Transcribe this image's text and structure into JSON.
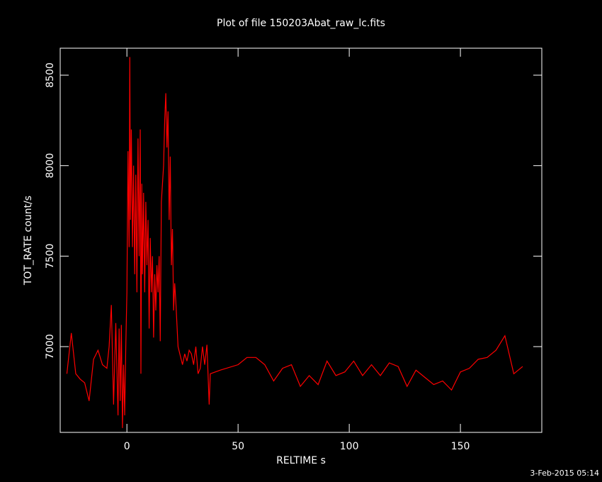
{
  "chart_data": {
    "type": "line",
    "title": "Plot of file 150203Abat_raw_lc.fits",
    "x_label": "RELTIME  s",
    "y_label": "TOT_RATE  count/s",
    "annotation": "3-Feb-2015 05:14",
    "xlim": [
      -30,
      186.6
    ],
    "ylim": [
      6526,
      8649
    ],
    "xticks": [
      0,
      50,
      100,
      150
    ],
    "yticks": [
      7000,
      7500,
      8000,
      8500
    ],
    "series": [
      {
        "color": "#ff0000",
        "x": [
          -27,
          -25,
          -23,
          -21,
          -19,
          -17,
          -15,
          -13,
          -11,
          -9,
          -8,
          -7,
          -6,
          -5,
          -4,
          -3.5,
          -3,
          -2.5,
          -2,
          -1.5,
          -1,
          -0.5,
          0,
          0.5,
          1,
          1.3,
          1.6,
          2,
          2.5,
          3,
          3.5,
          4,
          4.5,
          5,
          5.5,
          6,
          6.3,
          6.7,
          7,
          7.5,
          8,
          8.5,
          9,
          9.5,
          10,
          10.5,
          11,
          11.5,
          12,
          12.5,
          13,
          13.5,
          14,
          14.5,
          15,
          15.5,
          16,
          16.5,
          17,
          17.5,
          18,
          18.5,
          19,
          19.5,
          20,
          20.5,
          21,
          21.5,
          22,
          23,
          24,
          25,
          26,
          27,
          28,
          29,
          30,
          31,
          32,
          33,
          34,
          35,
          36,
          37,
          37.5,
          42,
          50,
          54,
          58,
          62,
          66,
          70,
          74,
          78,
          82,
          86,
          90,
          94,
          98,
          102,
          106,
          110,
          114,
          118,
          122,
          126,
          130,
          134,
          138,
          142,
          146,
          150,
          154,
          158,
          162,
          166,
          170,
          174,
          178
        ],
        "values": [
          6850,
          7075,
          6850,
          6820,
          6800,
          6700,
          6930,
          6980,
          6900,
          6880,
          7000,
          7230,
          6680,
          7130,
          6620,
          7100,
          6700,
          7120,
          6550,
          6900,
          6620,
          7000,
          7300,
          8080,
          7550,
          8600,
          7700,
          8200,
          7550,
          8000,
          7400,
          7950,
          7300,
          8150,
          7500,
          8200,
          6850,
          7900,
          7400,
          7850,
          7300,
          7800,
          7450,
          7700,
          7100,
          7600,
          7300,
          7500,
          7050,
          7400,
          7200,
          7450,
          7300,
          7500,
          7030,
          7800,
          7900,
          8000,
          8250,
          8400,
          8100,
          8300,
          7700,
          8050,
          7450,
          7650,
          7200,
          7350,
          7250,
          7000,
          6950,
          6900,
          6960,
          6920,
          6980,
          6960,
          6900,
          7000,
          6850,
          6880,
          7000,
          6900,
          7010,
          6680,
          6850,
          6870,
          6900,
          6940,
          6940,
          6900,
          6810,
          6880,
          6900,
          6780,
          6840,
          6790,
          6920,
          6840,
          6860,
          6920,
          6840,
          6900,
          6840,
          6910,
          6890,
          6780,
          6870,
          6830,
          6790,
          6810,
          6760,
          6860,
          6880,
          6930,
          6940,
          6980,
          7060,
          6850,
          6890
        ]
      }
    ]
  }
}
